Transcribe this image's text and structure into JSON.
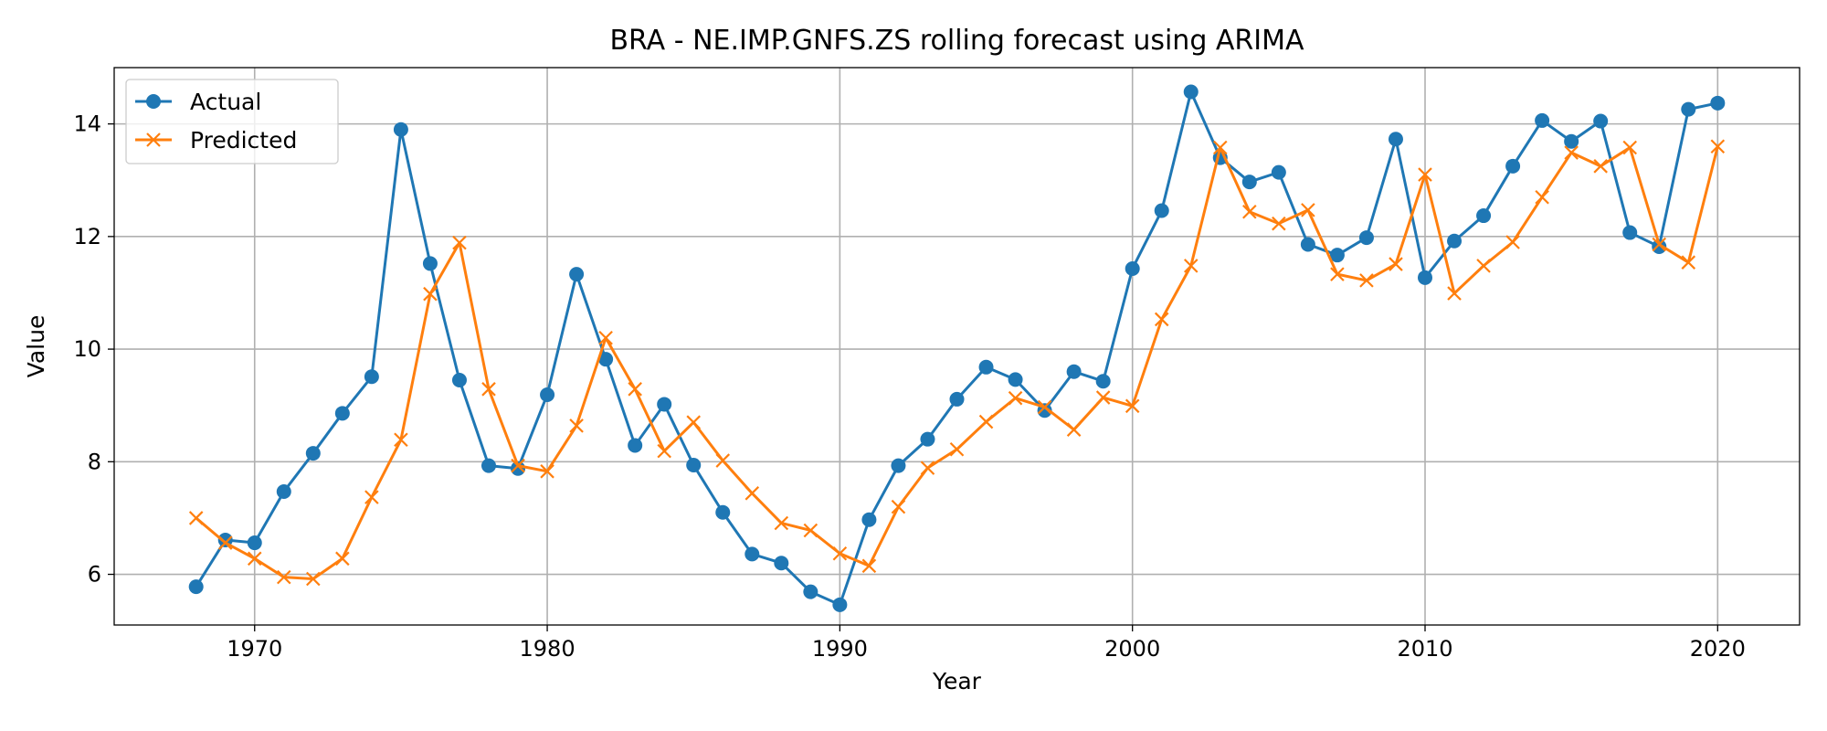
{
  "chart_data": {
    "type": "line",
    "title": "BRA - NE.IMP.GNFS.ZS rolling forecast using ARIMA",
    "xlabel": "Year",
    "ylabel": "Value",
    "xlim": [
      1965.2,
      2022.8
    ],
    "ylim": [
      5.1,
      15.0
    ],
    "xticks": [
      1970,
      1980,
      1990,
      2000,
      2010,
      2020
    ],
    "yticks": [
      6,
      8,
      10,
      12,
      14
    ],
    "grid": true,
    "legend_position": "top-left",
    "x": [
      1968,
      1969,
      1970,
      1971,
      1972,
      1973,
      1974,
      1975,
      1976,
      1977,
      1978,
      1979,
      1980,
      1981,
      1982,
      1983,
      1984,
      1985,
      1986,
      1987,
      1988,
      1989,
      1990,
      1991,
      1992,
      1993,
      1994,
      1995,
      1996,
      1997,
      1998,
      1999,
      2000,
      2001,
      2002,
      2003,
      2004,
      2005,
      2006,
      2007,
      2008,
      2009,
      2010,
      2011,
      2012,
      2013,
      2014,
      2015,
      2016,
      2017,
      2018,
      2019,
      2020
    ],
    "series": [
      {
        "name": "Actual",
        "color": "#1f77b4",
        "marker": "circle",
        "values": [
          5.78,
          6.61,
          6.56,
          7.47,
          8.15,
          8.86,
          9.51,
          13.9,
          11.52,
          9.45,
          7.93,
          7.88,
          9.19,
          11.33,
          9.82,
          8.29,
          9.02,
          7.94,
          7.1,
          6.36,
          6.2,
          5.69,
          5.46,
          6.97,
          7.93,
          8.4,
          9.11,
          9.68,
          9.46,
          8.91,
          9.6,
          9.43,
          11.43,
          12.46,
          14.57,
          13.4,
          12.97,
          13.14,
          11.86,
          11.67,
          11.98,
          13.73,
          11.27,
          11.92,
          12.37,
          13.25,
          14.06,
          13.69,
          14.05,
          12.07,
          11.82,
          14.26,
          14.37
        ]
      },
      {
        "name": "Predicted",
        "color": "#ff7f0e",
        "marker": "x",
        "values": [
          7.0,
          6.56,
          6.28,
          5.95,
          5.92,
          6.28,
          7.37,
          8.39,
          10.98,
          11.89,
          9.29,
          7.93,
          7.83,
          8.64,
          10.2,
          9.29,
          8.19,
          8.7,
          8.02,
          7.44,
          6.91,
          6.78,
          6.37,
          6.15,
          7.2,
          7.89,
          8.22,
          8.71,
          9.13,
          8.97,
          8.57,
          9.14,
          8.99,
          10.53,
          11.48,
          13.58,
          12.44,
          12.23,
          12.47,
          11.33,
          11.22,
          11.51,
          13.1,
          10.99,
          11.48,
          11.9,
          12.7,
          13.49,
          13.25,
          13.58,
          11.86,
          11.54,
          13.6
        ]
      }
    ]
  }
}
